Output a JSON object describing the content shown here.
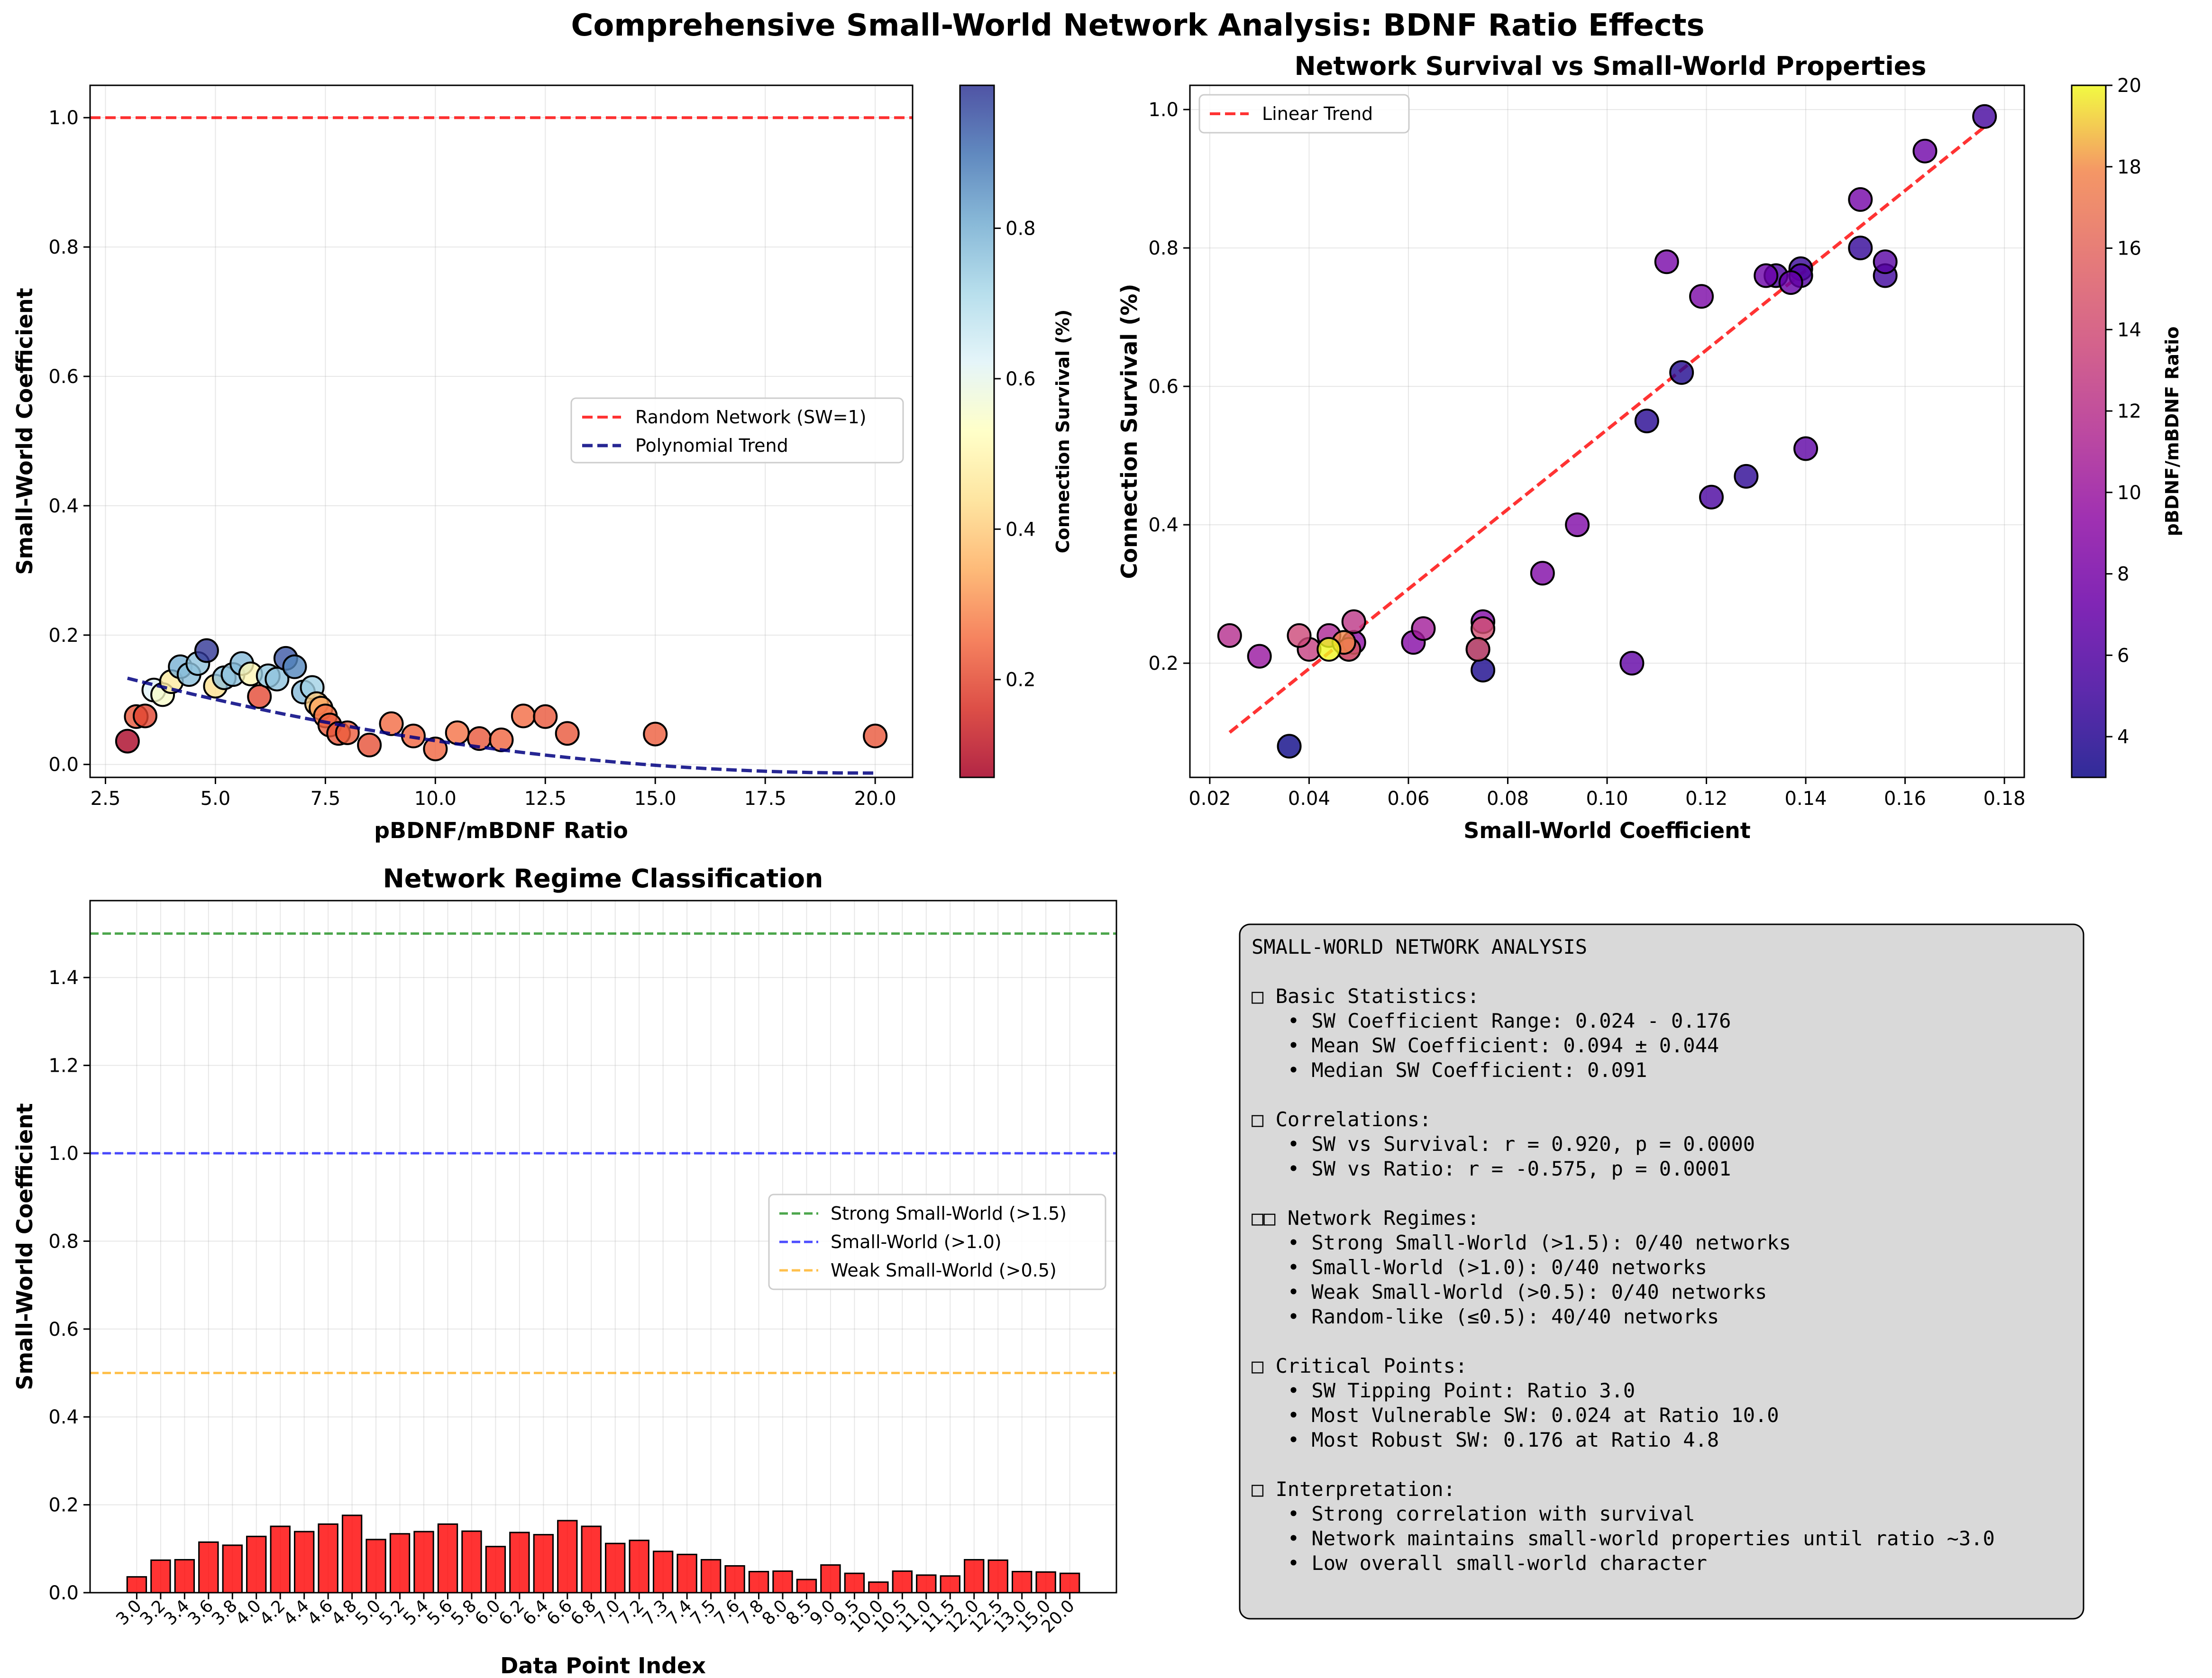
{
  "figure": {
    "title": "Comprehensive Small-World Network Analysis: BDNF Ratio Effects"
  },
  "ratios": [
    3.0,
    3.2,
    3.4,
    3.6,
    3.8,
    4.0,
    4.2,
    4.4,
    4.6,
    4.8,
    5.0,
    5.2,
    5.4,
    5.6,
    5.8,
    6.0,
    6.2,
    6.4,
    6.6,
    6.8,
    7.0,
    7.2,
    7.3,
    7.4,
    7.5,
    7.6,
    7.8,
    8.0,
    8.5,
    9.0,
    9.5,
    10.0,
    10.5,
    11.0,
    11.5,
    12.0,
    12.5,
    13.0,
    15.0,
    20.0
  ],
  "ratio_labels": [
    "3.0",
    "3.2",
    "3.4",
    "3.6",
    "3.8",
    "4.0",
    "4.2",
    "4.4",
    "4.6",
    "4.8",
    "5.0",
    "5.2",
    "5.4",
    "5.6",
    "5.8",
    "6.0",
    "6.2",
    "6.4",
    "6.6",
    "6.8",
    "7.0",
    "7.2",
    "7.3",
    "7.4",
    "7.5",
    "7.6",
    "7.8",
    "8.0",
    "8.5",
    "9.0",
    "9.5",
    "10.0",
    "10.5",
    "11.0",
    "11.5",
    "12.0",
    "12.5",
    "13.0",
    "15.0",
    "20.0"
  ],
  "sw_values": [
    0.036,
    0.074,
    0.075,
    0.115,
    0.108,
    0.128,
    0.151,
    0.139,
    0.156,
    0.176,
    0.121,
    0.134,
    0.139,
    0.156,
    0.14,
    0.105,
    0.137,
    0.132,
    0.164,
    0.151,
    0.112,
    0.119,
    0.094,
    0.087,
    0.075,
    0.061,
    0.048,
    0.049,
    0.03,
    0.063,
    0.044,
    0.024,
    0.049,
    0.04,
    0.038,
    0.075,
    0.074,
    0.048,
    0.047,
    0.044
  ],
  "survival_values": [
    0.08,
    0.22,
    0.19,
    0.62,
    0.55,
    0.47,
    0.8,
    0.77,
    0.76,
    0.99,
    0.44,
    0.76,
    0.76,
    0.78,
    0.51,
    0.2,
    0.75,
    0.76,
    0.94,
    0.87,
    0.78,
    0.73,
    0.4,
    0.33,
    0.26,
    0.23,
    0.22,
    0.23,
    0.21,
    0.25,
    0.24,
    0.24,
    0.26,
    0.22,
    0.24,
    0.25,
    0.22,
    0.22,
    0.23,
    0.22
  ],
  "chart_data": [
    {
      "type": "scatter",
      "title": "",
      "xlabel": "pBDNF/mBDNF Ratio",
      "ylabel": "Small-World Coefficient",
      "xlim": [
        2.15,
        20.85
      ],
      "ylim": [
        -0.02,
        1.05
      ],
      "xticks": [
        2.5,
        5.0,
        7.5,
        10.0,
        12.5,
        15.0,
        17.5,
        20.0
      ],
      "yticks": [
        0.0,
        0.2,
        0.4,
        0.6,
        0.8,
        1.0
      ],
      "x_source": "ratios",
      "y_source": "sw_values",
      "color_source": "survival_values",
      "colormap": "RdYlBu",
      "colorbar_label": "Connection Survival (%)",
      "colorbar_range": [
        0.07,
        0.99
      ],
      "colorbar_ticks": [
        0.2,
        0.4,
        0.6,
        0.8
      ],
      "reference_line": {
        "y": 1.0,
        "label": "Random Network (SW=1)",
        "color": "#ff0000"
      },
      "trend": {
        "label": "Polynomial Trend",
        "color": "#000080",
        "coef": [
          0.000518,
          -0.02054,
          0.1903
        ]
      },
      "legend": "center-right",
      "grid": true
    },
    {
      "type": "scatter",
      "title": "Network Survival vs Small-World Properties",
      "xlabel": "Small-World Coefficient",
      "ylabel": "Connection Survival (%)",
      "xlim": [
        0.016,
        0.184
      ],
      "ylim": [
        0.035,
        1.035
      ],
      "xticks": [
        0.02,
        0.04,
        0.06,
        0.08,
        0.1,
        0.12,
        0.14,
        0.16,
        0.18
      ],
      "yticks": [
        0.2,
        0.4,
        0.6,
        0.8,
        1.0
      ],
      "x_source": "sw_values",
      "y_source": "survival_values",
      "color_source": "ratios",
      "colormap": "plasma",
      "colorbar_label": "pBDNF/mBDNF Ratio",
      "colorbar_range": [
        3.0,
        20.0
      ],
      "colorbar_ticks": [
        4,
        6,
        8,
        10,
        12,
        14,
        16,
        18,
        20
      ],
      "trend": {
        "label": "Linear Trend",
        "color": "#ff0000",
        "x_range": [
          0.024,
          0.176
        ],
        "y_range": [
          0.1,
          0.975
        ]
      },
      "legend": "top-left",
      "grid": true
    },
    {
      "type": "bar",
      "title": "Network Regime Classification",
      "xlabel": "Data Point Index",
      "ylabel": "Small-World Coefficient",
      "ylim": [
        0.0,
        1.575
      ],
      "yticks": [
        0.0,
        0.2,
        0.4,
        0.6,
        0.8,
        1.0,
        1.2,
        1.4
      ],
      "categories_source": "ratio_labels",
      "values_source": "sw_values",
      "bar_color": "#ff0000",
      "thresholds": [
        {
          "y": 1.5,
          "label": "Strong Small-World (>1.5)",
          "color": "#008000"
        },
        {
          "y": 1.0,
          "label": "Small-World (>1.0)",
          "color": "#0000ff"
        },
        {
          "y": 0.5,
          "label": "Weak Small-World (>0.5)",
          "color": "#ffa500"
        }
      ],
      "legend": "center-right",
      "grid": true
    }
  ],
  "summary_lines": [
    "SMALL-WORLD NETWORK ANALYSIS",
    "",
    "□ Basic Statistics:",
    "   • SW Coefficient Range: 0.024 - 0.176",
    "   • Mean SW Coefficient: 0.094 ± 0.044",
    "   • Median SW Coefficient: 0.091",
    "",
    "□ Correlations:",
    "   • SW vs Survival: r = 0.920, p = 0.0000",
    "   • SW vs Ratio: r = -0.575, p = 0.0001",
    "",
    "□□ Network Regimes:",
    "   • Strong Small-World (>1.5): 0/40 networks",
    "   • Small-World (>1.0): 0/40 networks",
    "   • Weak Small-World (>0.5): 0/40 networks",
    "   • Random-like (≤0.5): 40/40 networks",
    "",
    "□ Critical Points:",
    "   • SW Tipping Point: Ratio 3.0",
    "   • Most Vulnerable SW: 0.024 at Ratio 10.0",
    "   • Most Robust SW: 0.176 at Ratio 4.8",
    "",
    "□ Interpretation:",
    "   • Strong correlation with survival",
    "   • Network maintains small-world properties until ratio ~3.0",
    "   • Low overall small-world character"
  ]
}
